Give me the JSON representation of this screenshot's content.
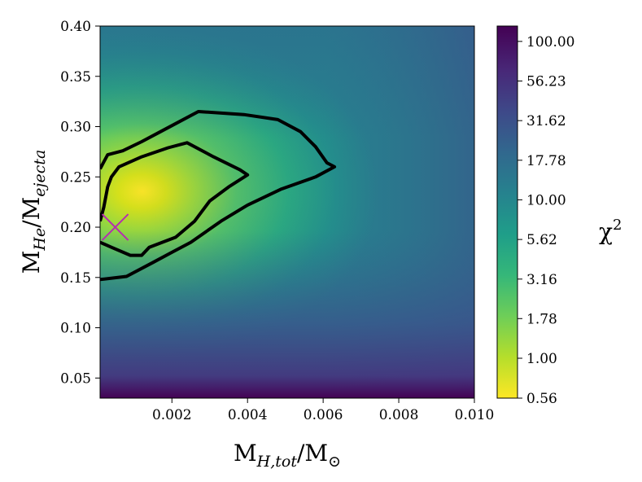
{
  "chart_data": {
    "type": "heatmap",
    "title": "",
    "xlabel": {
      "main": "M",
      "sub": "H,tot",
      "slash": "/M",
      "sub2": "⊙"
    },
    "ylabel": {
      "main": "M",
      "sub": "He",
      "slash": "/M",
      "sub2": "ejecta"
    },
    "colorbar_label": {
      "main": "χ",
      "sup": "2"
    },
    "xlim": [
      0.0001,
      0.01
    ],
    "ylim": [
      0.03,
      0.4
    ],
    "x_ticks": [
      "0.002",
      "0.004",
      "0.006",
      "0.008",
      "0.010"
    ],
    "x_tick_values": [
      0.002,
      0.004,
      0.006,
      0.008,
      0.01
    ],
    "y_ticks": [
      "0.05",
      "0.10",
      "0.15",
      "0.20",
      "0.25",
      "0.30",
      "0.35",
      "0.40"
    ],
    "y_tick_values": [
      0.05,
      0.1,
      0.15,
      0.2,
      0.25,
      0.3,
      0.35,
      0.4
    ],
    "colorbar_ticks": [
      "0.56",
      "1.00",
      "1.78",
      "3.16",
      "5.62",
      "10.00",
      "17.78",
      "31.62",
      "56.23",
      "100.00"
    ],
    "colorbar_tick_values": [
      0.56,
      1.0,
      1.78,
      3.16,
      5.62,
      10.0,
      17.78,
      31.62,
      56.23,
      100.0
    ],
    "colorbar_range": [
      0.56,
      125
    ],
    "colormap": [
      "#fde725",
      "#b5de2b",
      "#6ece58",
      "#35b779",
      "#1f9e89",
      "#26828e",
      "#31688e",
      "#3e4989",
      "#482878",
      "#440154"
    ],
    "minimum_marker": {
      "x": 0.0005,
      "y": 0.2,
      "color": "#b62db0"
    },
    "contours": [
      {
        "name": "inner",
        "points": [
          [
            0.0001,
            0.185
          ],
          [
            0.0004,
            0.18
          ],
          [
            0.0009,
            0.172
          ],
          [
            0.0012,
            0.172
          ],
          [
            0.0014,
            0.18
          ],
          [
            0.0021,
            0.19
          ],
          [
            0.0026,
            0.206
          ],
          [
            0.003,
            0.226
          ],
          [
            0.0035,
            0.24
          ],
          [
            0.004,
            0.252
          ],
          [
            0.0038,
            0.257
          ],
          [
            0.0031,
            0.27
          ],
          [
            0.0024,
            0.284
          ],
          [
            0.0019,
            0.279
          ],
          [
            0.0012,
            0.27
          ],
          [
            0.0006,
            0.26
          ],
          [
            0.0004,
            0.25
          ],
          [
            0.0003,
            0.24
          ],
          [
            0.0002,
            0.22
          ],
          [
            0.0001,
            0.206
          ]
        ]
      },
      {
        "name": "outer",
        "points": [
          [
            0.0001,
            0.148
          ],
          [
            0.0008,
            0.151
          ],
          [
            0.0015,
            0.165
          ],
          [
            0.002,
            0.175
          ],
          [
            0.0025,
            0.185
          ],
          [
            0.0033,
            0.206
          ],
          [
            0.004,
            0.222
          ],
          [
            0.0049,
            0.238
          ],
          [
            0.0058,
            0.25
          ],
          [
            0.0063,
            0.26
          ],
          [
            0.0061,
            0.264
          ],
          [
            0.0058,
            0.28
          ],
          [
            0.0054,
            0.295
          ],
          [
            0.0048,
            0.307
          ],
          [
            0.0039,
            0.312
          ],
          [
            0.0027,
            0.315
          ],
          [
            0.0022,
            0.305
          ],
          [
            0.0017,
            0.295
          ],
          [
            0.0012,
            0.285
          ],
          [
            0.0007,
            0.276
          ],
          [
            0.0003,
            0.272
          ],
          [
            0.0001,
            0.258
          ]
        ]
      }
    ]
  }
}
